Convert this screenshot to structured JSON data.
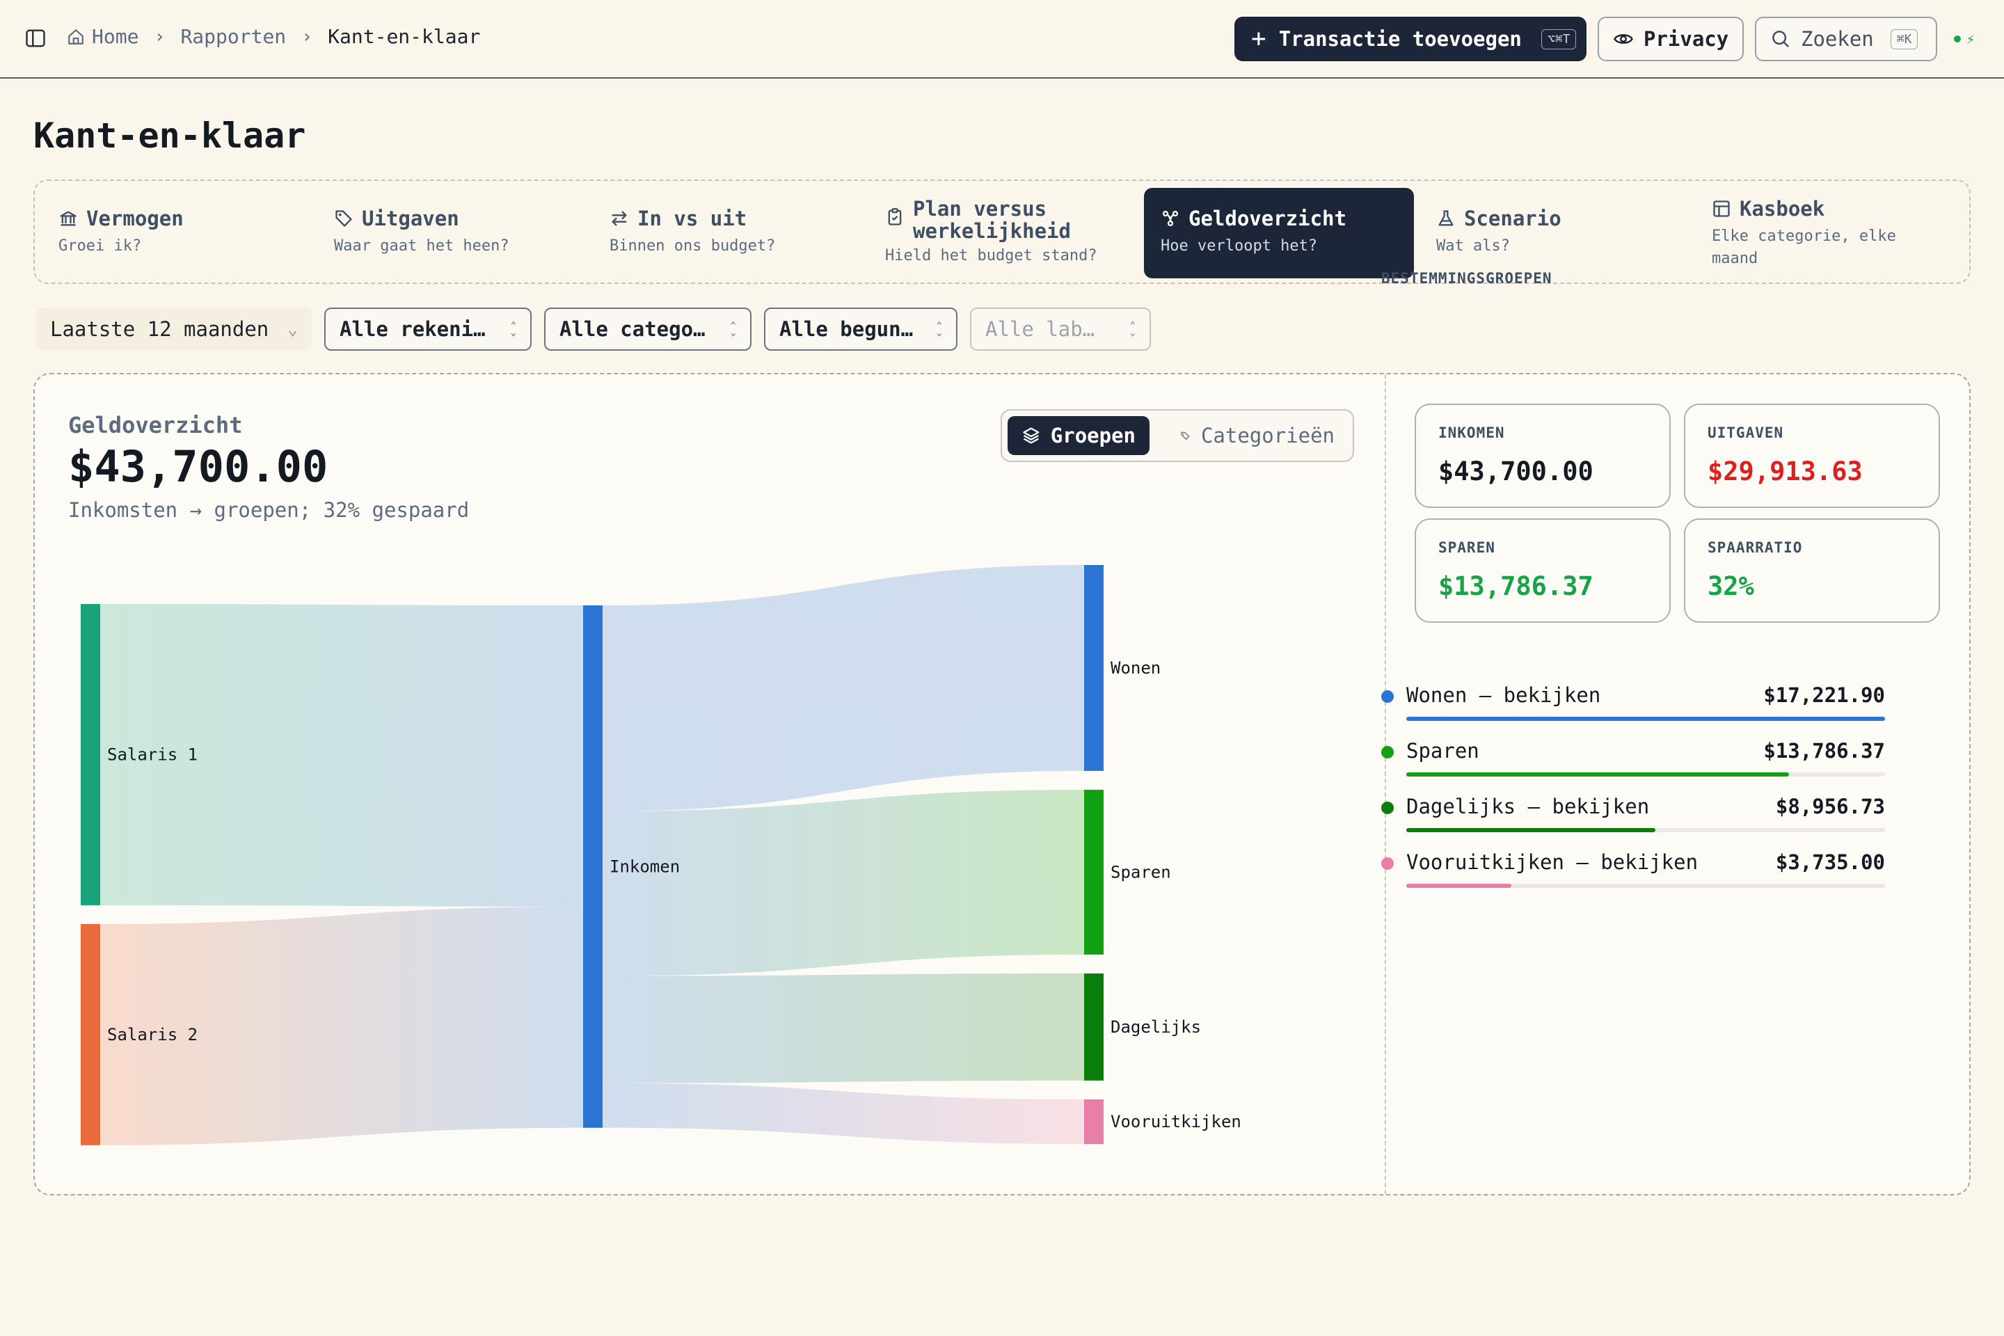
{
  "breadcrumb": {
    "home": "Home",
    "reports": "Rapporten",
    "current": "Kant-en-klaar"
  },
  "toolbar": {
    "add_transaction": "Transactie toevoegen",
    "add_transaction_shortcut": "⌥⌘T",
    "privacy": "Privacy",
    "search": "Zoeken",
    "search_shortcut": "⌘K"
  },
  "page_title": "Kant-en-klaar",
  "tabs": [
    {
      "title": "Vermogen",
      "subtitle": "Groei ik?",
      "icon": "bank-icon"
    },
    {
      "title": "Uitgaven",
      "subtitle": "Waar gaat het heen?",
      "icon": "tag-icon"
    },
    {
      "title": "In vs uit",
      "subtitle": "Binnen ons budget?",
      "icon": "arrows-icon"
    },
    {
      "title": "Plan versus werkelijkheid",
      "subtitle": "Hield het budget stand?",
      "icon": "clipboard-icon"
    },
    {
      "title": "Geldoverzicht",
      "subtitle": "Hoe verloopt het?",
      "icon": "flow-icon",
      "active": true
    },
    {
      "title": "Scenario",
      "subtitle": "Wat als?",
      "icon": "flask-icon"
    },
    {
      "title": "Kasboek",
      "subtitle": "Elke categorie, elke maand",
      "icon": "table-icon"
    }
  ],
  "filters": {
    "period": "Laatste 12 maanden",
    "accounts": "Alle rekeni…",
    "categories": "Alle catego…",
    "beneficiaries": "Alle begun…",
    "labels": "Alle lab…"
  },
  "overview": {
    "label": "Geldoverzicht",
    "amount": "$43,700.00",
    "subtitle": "Inkomsten → groepen; 32% gespaard",
    "toggle_groups": "Groepen",
    "toggle_categories": "Categorieën"
  },
  "chart_data": {
    "type": "sankey",
    "nodes": [
      "Salaris 1",
      "Salaris 2",
      "Inkomen",
      "Wonen",
      "Sparen",
      "Dagelijks",
      "Vooruitkijken"
    ],
    "links": [
      {
        "source": "Salaris 1",
        "target": "Inkomen",
        "value": 25200.0
      },
      {
        "source": "Salaris 2",
        "target": "Inkomen",
        "value": 18500.0
      },
      {
        "source": "Inkomen",
        "target": "Wonen",
        "value": 17221.9
      },
      {
        "source": "Inkomen",
        "target": "Sparen",
        "value": 13786.37
      },
      {
        "source": "Inkomen",
        "target": "Dagelijks",
        "value": 8956.73
      },
      {
        "source": "Inkomen",
        "target": "Vooruitkijken",
        "value": 3735.0
      }
    ],
    "colors": {
      "Salaris 1": "#1aa37a",
      "Salaris 2": "#ea6a3a",
      "Inkomen": "#2c74d4",
      "Wonen": "#2c74d4",
      "Sparen": "#12a112",
      "Dagelijks": "#0a7d0a",
      "Vooruitkijken": "#e87fa8"
    }
  },
  "stats": [
    {
      "label": "INKOMEN",
      "value": "$43,700.00",
      "color": "#141a22"
    },
    {
      "label": "UITGAVEN",
      "value": "$29,913.63",
      "color": "#dc1f1f"
    },
    {
      "label": "SPAREN",
      "value": "$13,786.37",
      "color": "#16a34a"
    },
    {
      "label": "SPAARRATIO",
      "value": "32%",
      "color": "#16a34a"
    }
  ],
  "groups_title": "BESTEMMINGSGROEPEN",
  "groups": [
    {
      "name": "Wonen — bekijken",
      "value": "$17,221.90",
      "fraction": 1.0,
      "color": "#2c74d4"
    },
    {
      "name": "Sparen",
      "value": "$13,786.37",
      "fraction": 0.8,
      "color": "#12a112"
    },
    {
      "name": "Dagelijks — bekijken",
      "value": "$8,956.73",
      "fraction": 0.52,
      "color": "#0a7d0a"
    },
    {
      "name": "Vooruitkijken — bekijken",
      "value": "$3,735.00",
      "fraction": 0.22,
      "color": "#e87fa8"
    }
  ]
}
